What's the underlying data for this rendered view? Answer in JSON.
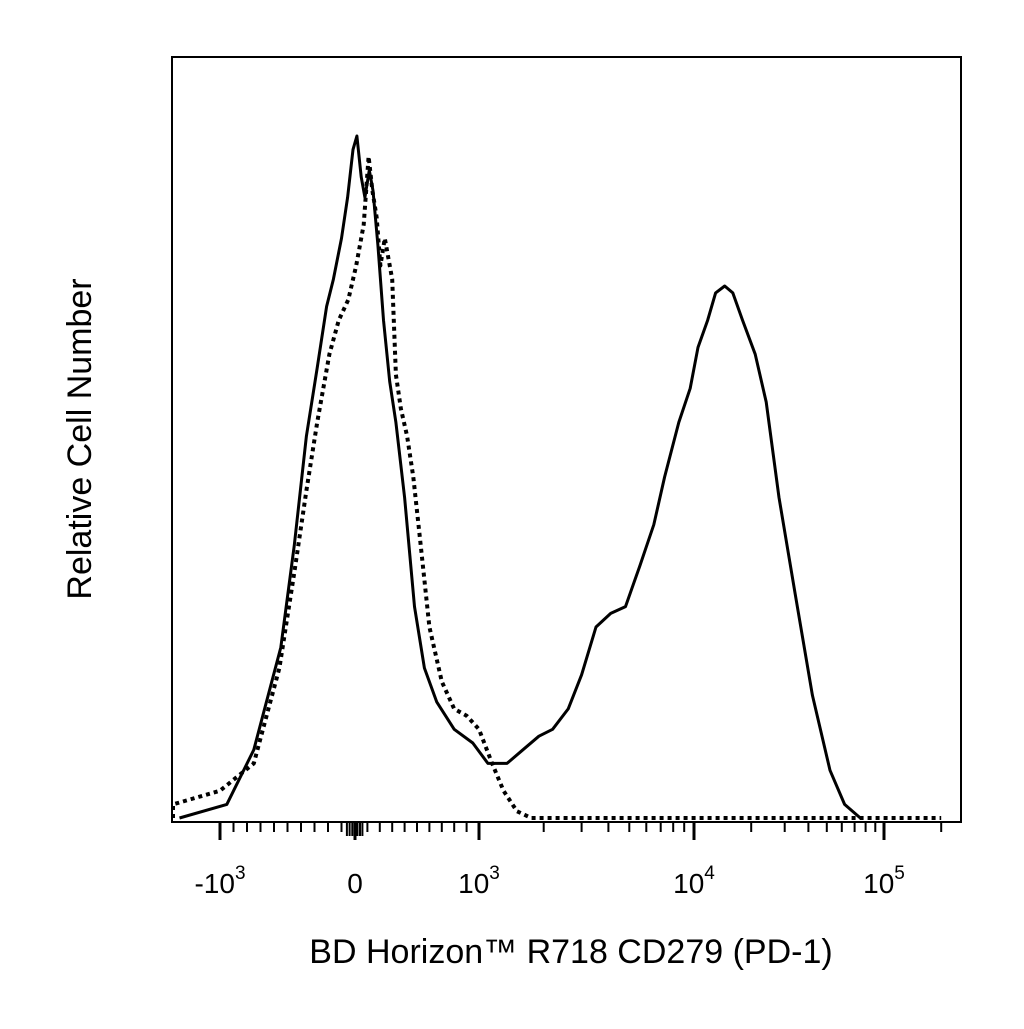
{
  "chart_data": {
    "type": "line",
    "title": "",
    "xlabel": "BD Horizon™ R718 CD279 (PD-1)",
    "ylabel": "Relative Cell Number",
    "x_scale": "biexponential",
    "xlim": [
      -2000,
      200000
    ],
    "ylim": [
      0,
      100
    ],
    "grid": false,
    "legend": "none",
    "x_ticks": [
      {
        "value": -1000,
        "base": "-10",
        "exp": "3"
      },
      {
        "value": 0,
        "base": "0",
        "exp": ""
      },
      {
        "value": 1000,
        "base": "10",
        "exp": "3"
      },
      {
        "value": 10000,
        "base": "10",
        "exp": "4"
      },
      {
        "value": 100000,
        "base": "10",
        "exp": "5"
      }
    ],
    "series": [
      {
        "style": "solid",
        "color": "#000000",
        "points": [
          [
            -1300,
            0
          ],
          [
            -950,
            2
          ],
          [
            -750,
            10
          ],
          [
            -550,
            25
          ],
          [
            -450,
            40
          ],
          [
            -360,
            56
          ],
          [
            -280,
            66
          ],
          [
            -210,
            75
          ],
          [
            -160,
            79
          ],
          [
            -100,
            85
          ],
          [
            -55,
            91
          ],
          [
            -15,
            98
          ],
          [
            15,
            100
          ],
          [
            50,
            94
          ],
          [
            80,
            91
          ],
          [
            115,
            95
          ],
          [
            145,
            92
          ],
          [
            185,
            84
          ],
          [
            230,
            73
          ],
          [
            280,
            64
          ],
          [
            330,
            58
          ],
          [
            400,
            47
          ],
          [
            480,
            31
          ],
          [
            560,
            22
          ],
          [
            660,
            17
          ],
          [
            800,
            13
          ],
          [
            950,
            11
          ],
          [
            1100,
            8
          ],
          [
            1350,
            8
          ],
          [
            1600,
            10
          ],
          [
            1900,
            12
          ],
          [
            2200,
            13
          ],
          [
            2600,
            16
          ],
          [
            3000,
            21
          ],
          [
            3500,
            28
          ],
          [
            4100,
            30
          ],
          [
            4800,
            31
          ],
          [
            5600,
            37
          ],
          [
            6500,
            43
          ],
          [
            7300,
            50
          ],
          [
            8500,
            58
          ],
          [
            9600,
            63
          ],
          [
            10500,
            69
          ],
          [
            11800,
            73
          ],
          [
            13000,
            77
          ],
          [
            14500,
            78
          ],
          [
            16000,
            77
          ],
          [
            18000,
            73
          ],
          [
            21000,
            68
          ],
          [
            24000,
            61
          ],
          [
            28000,
            47
          ],
          [
            34000,
            33
          ],
          [
            42000,
            18
          ],
          [
            52000,
            7
          ],
          [
            62000,
            2
          ],
          [
            75000,
            0
          ]
        ]
      },
      {
        "style": "dotted",
        "color": "#000000",
        "points": [
          [
            -2000,
            0
          ],
          [
            -1500,
            2
          ],
          [
            -1000,
            4
          ],
          [
            -750,
            8
          ],
          [
            -560,
            22
          ],
          [
            -450,
            36
          ],
          [
            -360,
            48
          ],
          [
            -280,
            58
          ],
          [
            -190,
            68
          ],
          [
            -120,
            73
          ],
          [
            -50,
            76
          ],
          [
            10,
            81
          ],
          [
            70,
            87
          ],
          [
            110,
            97
          ],
          [
            140,
            92
          ],
          [
            175,
            88
          ],
          [
            205,
            81
          ],
          [
            240,
            85
          ],
          [
            270,
            82
          ],
          [
            300,
            79
          ],
          [
            330,
            65
          ],
          [
            370,
            60
          ],
          [
            420,
            56
          ],
          [
            470,
            50
          ],
          [
            530,
            40
          ],
          [
            600,
            28
          ],
          [
            700,
            20
          ],
          [
            800,
            16
          ],
          [
            900,
            15
          ],
          [
            1000,
            13
          ],
          [
            1150,
            8
          ],
          [
            1300,
            4
          ],
          [
            1500,
            1
          ],
          [
            1750,
            0
          ],
          [
            2500,
            0
          ],
          [
            200000,
            0
          ]
        ]
      }
    ]
  }
}
